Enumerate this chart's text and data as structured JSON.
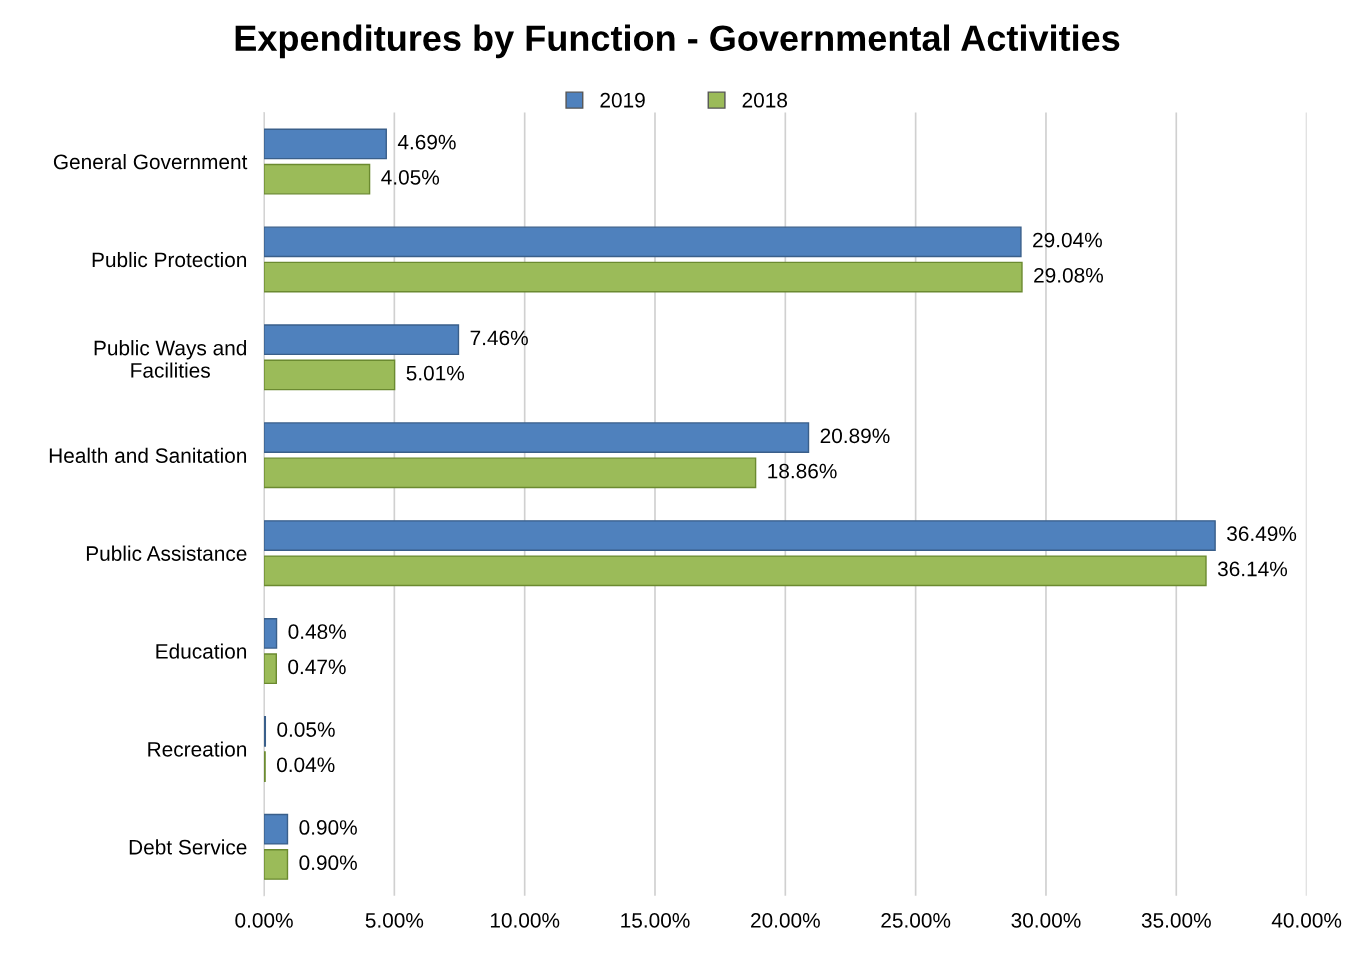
{
  "chart_data": {
    "type": "bar",
    "orientation": "horizontal",
    "title": "Expenditures by Function - Governmental Activities",
    "categories": [
      "General Government",
      "Public Protection",
      "Public Ways and\nFacilities",
      "Health and Sanitation",
      "Public Assistance",
      "Education",
      "Recreation",
      "Debt Service"
    ],
    "series": [
      {
        "name": "2019",
        "color": "#4f81bd",
        "values": [
          4.69,
          29.04,
          7.46,
          20.89,
          36.49,
          0.48,
          0.05,
          0.9
        ],
        "value_labels": [
          "4.69%",
          "29.04%",
          "7.46%",
          "20.89%",
          "36.49%",
          "0.48%",
          "0.05%",
          "0.90%"
        ]
      },
      {
        "name": "2018",
        "color": "#9bbb59",
        "values": [
          4.05,
          29.08,
          5.01,
          18.86,
          36.14,
          0.47,
          0.04,
          0.9
        ],
        "value_labels": [
          "4.05%",
          "29.08%",
          "5.01%",
          "18.86%",
          "36.14%",
          "0.47%",
          "0.04%",
          "0.90%"
        ]
      }
    ],
    "xlim": [
      0,
      40
    ],
    "xticks": [
      {
        "value": 0,
        "label": "0.00%"
      },
      {
        "value": 5,
        "label": "5.00%"
      },
      {
        "value": 10,
        "label": "10.00%"
      },
      {
        "value": 15,
        "label": "15.00%"
      },
      {
        "value": 20,
        "label": "20.00%"
      },
      {
        "value": 25,
        "label": "25.00%"
      },
      {
        "value": 30,
        "label": "30.00%"
      },
      {
        "value": 35,
        "label": "35.00%"
      },
      {
        "value": 40,
        "label": "40.00%"
      }
    ],
    "grid": "x",
    "legend": "top"
  }
}
